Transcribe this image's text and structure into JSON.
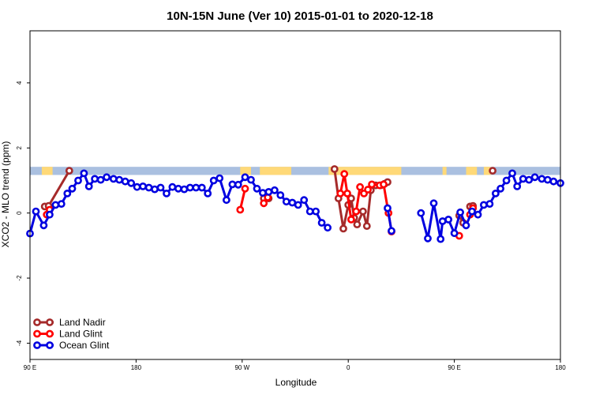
{
  "chart_data": {
    "type": "line",
    "title": "10N-15N June (Ver 10)   2015-01-01 to 2020-12-18",
    "xlabel": "Longitude",
    "ylabel": "XCO2 - MLO trend (ppm)",
    "xlim": [
      0,
      540
    ],
    "ylim": [
      -4.5,
      5.6
    ],
    "x_ticks": [
      {
        "value": 0,
        "label": "90 E"
      },
      {
        "value": 108,
        "label": "180"
      },
      {
        "value": 216,
        "label": "90 W"
      },
      {
        "value": 324,
        "label": "0"
      },
      {
        "value": 432,
        "label": "90 E"
      },
      {
        "value": 540,
        "label": "180"
      }
    ],
    "y_ticks": [
      {
        "value": -4,
        "label": "-4"
      },
      {
        "value": -2,
        "label": "-2"
      },
      {
        "value": 0,
        "label": "0"
      },
      {
        "value": 2,
        "label": "2"
      },
      {
        "value": 4,
        "label": "4"
      }
    ],
    "band": {
      "y_range": [
        1.17,
        1.42
      ],
      "base_color": "#aac0e0",
      "land_color": "#ffd978",
      "land_segments": [
        [
          12,
          23
        ],
        [
          214,
          225
        ],
        [
          234,
          266
        ],
        [
          304,
          378
        ],
        [
          420,
          424
        ],
        [
          444,
          455
        ],
        [
          462,
          469
        ]
      ]
    },
    "legend_position": "bottom-left",
    "series": [
      {
        "name": "Land Nadir",
        "color": "#a52a2a",
        "segments": [
          [
            {
              "x": 15,
              "y": 0.2
            },
            {
              "x": 19,
              "y": 0.22
            },
            {
              "x": 40,
              "y": 1.3
            }
          ],
          [
            {
              "x": 238,
              "y": 0.45
            },
            {
              "x": 243,
              "y": 0.45
            }
          ],
          [
            {
              "x": 310,
              "y": 1.35
            },
            {
              "x": 314,
              "y": 0.45
            },
            {
              "x": 319,
              "y": -0.48
            },
            {
              "x": 324,
              "y": 0.25
            },
            {
              "x": 327,
              "y": 0.45
            },
            {
              "x": 330,
              "y": -0.15
            },
            {
              "x": 333,
              "y": -0.35
            },
            {
              "x": 339,
              "y": 0.05
            },
            {
              "x": 343,
              "y": -0.4
            },
            {
              "x": 347,
              "y": 0.7
            },
            {
              "x": 352,
              "y": 0.85
            },
            {
              "x": 357,
              "y": 0.85
            },
            {
              "x": 361,
              "y": 0.9
            },
            {
              "x": 364,
              "y": 0.95
            }
          ],
          [
            {
              "x": 437,
              "y": -0.08
            },
            {
              "x": 441,
              "y": -0.3
            }
          ],
          [
            {
              "x": 448,
              "y": 0.2
            },
            {
              "x": 451,
              "y": 0.22
            }
          ],
          [
            {
              "x": 471,
              "y": 1.3
            }
          ]
        ]
      },
      {
        "name": "Land Glint",
        "color": "#ff0000",
        "segments": [
          [
            {
              "x": 17,
              "y": -0.05
            },
            {
              "x": 20,
              "y": 0.1
            }
          ],
          [
            {
              "x": 214,
              "y": 0.1
            },
            {
              "x": 219,
              "y": 0.75
            }
          ],
          [
            {
              "x": 238,
              "y": 0.3
            },
            {
              "x": 242,
              "y": 0.48
            }
          ],
          [
            {
              "x": 316,
              "y": 0.6
            },
            {
              "x": 320,
              "y": 1.2
            },
            {
              "x": 323,
              "y": 0.6
            },
            {
              "x": 327,
              "y": -0.2
            },
            {
              "x": 332,
              "y": 0.05
            },
            {
              "x": 336,
              "y": 0.8
            },
            {
              "x": 340,
              "y": 0.6
            },
            {
              "x": 344,
              "y": 0.72
            },
            {
              "x": 348,
              "y": 0.88
            },
            {
              "x": 356,
              "y": 0.85
            },
            {
              "x": 360,
              "y": 0.88
            },
            {
              "x": 365,
              "y": 0.0
            },
            {
              "x": 368,
              "y": -0.57
            }
          ],
          [
            {
              "x": 437,
              "y": -0.7
            }
          ],
          [
            {
              "x": 448,
              "y": -0.05
            },
            {
              "x": 451,
              "y": 0.15
            }
          ]
        ]
      },
      {
        "name": "Ocean Glint",
        "color": "#0000e0",
        "segments": [
          [
            {
              "x": 0,
              "y": -0.63
            },
            {
              "x": 6,
              "y": 0.05
            },
            {
              "x": 14,
              "y": -0.38
            },
            {
              "x": 20,
              "y": -0.05
            },
            {
              "x": 26,
              "y": 0.25
            },
            {
              "x": 32,
              "y": 0.28
            },
            {
              "x": 38,
              "y": 0.6
            },
            {
              "x": 43,
              "y": 0.75
            },
            {
              "x": 49,
              "y": 1.0
            },
            {
              "x": 55,
              "y": 1.22
            },
            {
              "x": 60,
              "y": 0.82
            },
            {
              "x": 66,
              "y": 1.05
            },
            {
              "x": 72,
              "y": 1.02
            },
            {
              "x": 78,
              "y": 1.1
            },
            {
              "x": 85,
              "y": 1.05
            },
            {
              "x": 91,
              "y": 1.02
            },
            {
              "x": 97,
              "y": 0.97
            },
            {
              "x": 103,
              "y": 0.92
            },
            {
              "x": 109,
              "y": 0.8
            },
            {
              "x": 115,
              "y": 0.82
            },
            {
              "x": 121,
              "y": 0.78
            },
            {
              "x": 127,
              "y": 0.73
            },
            {
              "x": 133,
              "y": 0.78
            },
            {
              "x": 139,
              "y": 0.6
            },
            {
              "x": 145,
              "y": 0.8
            },
            {
              "x": 151,
              "y": 0.75
            },
            {
              "x": 157,
              "y": 0.73
            },
            {
              "x": 163,
              "y": 0.78
            },
            {
              "x": 169,
              "y": 0.78
            },
            {
              "x": 175,
              "y": 0.78
            },
            {
              "x": 181,
              "y": 0.6
            },
            {
              "x": 187,
              "y": 1.0
            },
            {
              "x": 193,
              "y": 1.07
            },
            {
              "x": 200,
              "y": 0.4
            },
            {
              "x": 206,
              "y": 0.88
            },
            {
              "x": 212,
              "y": 0.87
            },
            {
              "x": 219,
              "y": 1.1
            },
            {
              "x": 225,
              "y": 1.02
            },
            {
              "x": 231,
              "y": 0.75
            },
            {
              "x": 237,
              "y": 0.62
            },
            {
              "x": 243,
              "y": 0.65
            },
            {
              "x": 249,
              "y": 0.7
            },
            {
              "x": 255,
              "y": 0.55
            },
            {
              "x": 261,
              "y": 0.35
            },
            {
              "x": 267,
              "y": 0.32
            },
            {
              "x": 273,
              "y": 0.25
            },
            {
              "x": 279,
              "y": 0.4
            },
            {
              "x": 285,
              "y": 0.05
            },
            {
              "x": 291,
              "y": 0.05
            },
            {
              "x": 297,
              "y": -0.3
            },
            {
              "x": 303,
              "y": -0.45
            }
          ],
          [
            {
              "x": 364,
              "y": 0.15
            },
            {
              "x": 368,
              "y": -0.55
            }
          ],
          [
            {
              "x": 398,
              "y": 0.0
            },
            {
              "x": 405,
              "y": -0.78
            },
            {
              "x": 411,
              "y": 0.3
            },
            {
              "x": 418,
              "y": -0.8
            },
            {
              "x": 420,
              "y": -0.25
            },
            {
              "x": 426,
              "y": -0.2
            },
            {
              "x": 432,
              "y": -0.62
            },
            {
              "x": 438,
              "y": 0.02
            },
            {
              "x": 444,
              "y": -0.38
            },
            {
              "x": 450,
              "y": 0.05
            },
            {
              "x": 456,
              "y": -0.05
            },
            {
              "x": 462,
              "y": 0.25
            },
            {
              "x": 468,
              "y": 0.28
            },
            {
              "x": 474,
              "y": 0.6
            },
            {
              "x": 479,
              "y": 0.75
            },
            {
              "x": 485,
              "y": 1.0
            },
            {
              "x": 491,
              "y": 1.22
            },
            {
              "x": 496,
              "y": 0.82
            },
            {
              "x": 502,
              "y": 1.05
            },
            {
              "x": 508,
              "y": 1.02
            },
            {
              "x": 514,
              "y": 1.1
            },
            {
              "x": 521,
              "y": 1.05
            },
            {
              "x": 527,
              "y": 1.02
            },
            {
              "x": 533,
              "y": 0.97
            },
            {
              "x": 540,
              "y": 0.92
            }
          ]
        ]
      }
    ]
  }
}
